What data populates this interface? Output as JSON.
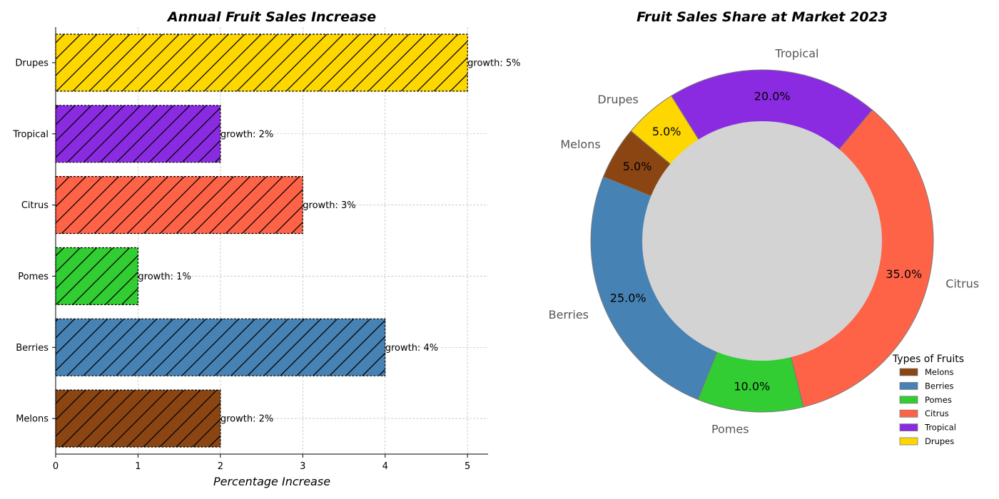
{
  "chart_data": [
    {
      "type": "bar",
      "orientation": "horizontal",
      "title": "Annual Fruit Sales Increase",
      "xlabel": "Percentage Increase",
      "ylabel": "",
      "categories": [
        "Melons",
        "Berries",
        "Pomes",
        "Citrus",
        "Tropical",
        "Drupes"
      ],
      "values": [
        2,
        4,
        1,
        3,
        2,
        5
      ],
      "data_labels": [
        "growth: 2%",
        "growth: 4%",
        "growth: 1%",
        "growth: 3%",
        "growth: 2%",
        "growth: 5%"
      ],
      "colors": [
        "#8B4513",
        "#4682B4",
        "#32CD32",
        "#FF6347",
        "#8A2BE2",
        "#FFD700"
      ],
      "hatch": "diagonal",
      "edge_style": "dashed",
      "xlim": [
        0,
        5.25
      ],
      "xticks": [
        0,
        1,
        2,
        3,
        4,
        5
      ],
      "grid": true,
      "grid_style": "dashed"
    },
    {
      "type": "pie",
      "style": "donut",
      "title": "Fruit Sales Share at Market 2023",
      "categories": [
        "Melons",
        "Berries",
        "Pomes",
        "Citrus",
        "Tropical",
        "Drupes"
      ],
      "values": [
        5,
        25,
        10,
        35,
        20,
        5
      ],
      "pct_labels": [
        "5.0%",
        "25.0%",
        "10.0%",
        "35.0%",
        "20.0%",
        "5.0%"
      ],
      "colors": [
        "#8B4513",
        "#4682B4",
        "#32CD32",
        "#FF6347",
        "#8A2BE2",
        "#FFD700"
      ],
      "center_color": "#D3D3D3",
      "start_angle_deg": 140,
      "direction": "counterclockwise",
      "legend_title": "Types of Fruits",
      "legend_entries": [
        "Melons",
        "Berries",
        "Pomes",
        "Citrus",
        "Tropical",
        "Drupes"
      ],
      "legend_position": "lower-right"
    }
  ]
}
